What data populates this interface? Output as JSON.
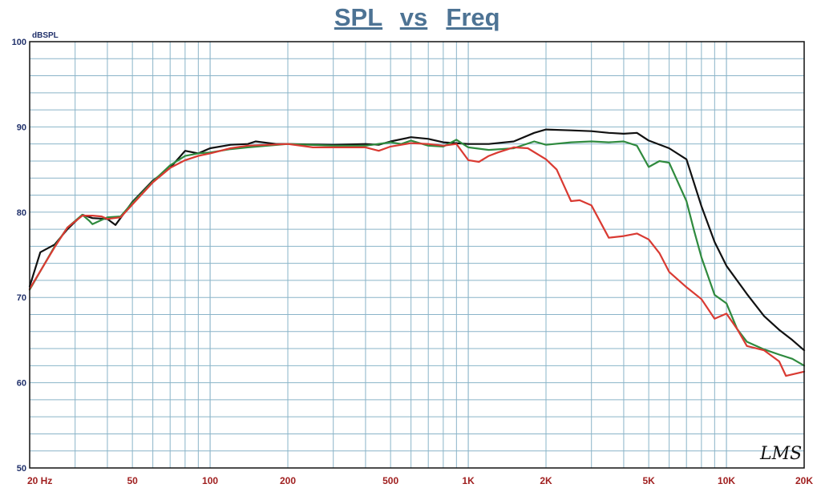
{
  "chart_data": {
    "type": "line",
    "title_words": [
      "SPL",
      "vs",
      "Freq"
    ],
    "ylabel": "dBSPL",
    "xscale": "log",
    "xlim": [
      20,
      20000
    ],
    "ylim": [
      50,
      100
    ],
    "grid": true,
    "yticks": [
      50,
      60,
      70,
      80,
      90,
      100
    ],
    "xtick_labels": [
      {
        "v": 20,
        "label": "20  Hz"
      },
      {
        "v": 50,
        "label": "50"
      },
      {
        "v": 100,
        "label": "100"
      },
      {
        "v": 200,
        "label": "200"
      },
      {
        "v": 500,
        "label": "500"
      },
      {
        "v": 1000,
        "label": "1K"
      },
      {
        "v": 2000,
        "label": "2K"
      },
      {
        "v": 5000,
        "label": "5K"
      },
      {
        "v": 10000,
        "label": "10K"
      },
      {
        "v": 20000,
        "label": "20K"
      }
    ],
    "logo": "LMS",
    "series": [
      {
        "color": "#111111",
        "points": [
          [
            20,
            71.3
          ],
          [
            22,
            75.3
          ],
          [
            25,
            76.2
          ],
          [
            28,
            78.0
          ],
          [
            32,
            79.7
          ],
          [
            35,
            79.3
          ],
          [
            40,
            79.2
          ],
          [
            43,
            78.5
          ],
          [
            50,
            81.2
          ],
          [
            60,
            83.7
          ],
          [
            70,
            85.2
          ],
          [
            80,
            87.2
          ],
          [
            90,
            86.9
          ],
          [
            100,
            87.5
          ],
          [
            120,
            87.9
          ],
          [
            140,
            88.0
          ],
          [
            150,
            88.3
          ],
          [
            180,
            88.0
          ],
          [
            200,
            88.0
          ],
          [
            300,
            87.9
          ],
          [
            400,
            88.0
          ],
          [
            450,
            87.9
          ],
          [
            500,
            88.3
          ],
          [
            600,
            88.8
          ],
          [
            700,
            88.6
          ],
          [
            800,
            88.2
          ],
          [
            1000,
            88.0
          ],
          [
            1200,
            88.0
          ],
          [
            1500,
            88.3
          ],
          [
            1800,
            89.3
          ],
          [
            2000,
            89.7
          ],
          [
            2500,
            89.6
          ],
          [
            3000,
            89.5
          ],
          [
            3500,
            89.3
          ],
          [
            4000,
            89.2
          ],
          [
            4500,
            89.3
          ],
          [
            5000,
            88.4
          ],
          [
            6000,
            87.5
          ],
          [
            7000,
            86.2
          ],
          [
            8000,
            80.7
          ],
          [
            9000,
            76.5
          ],
          [
            10000,
            73.7
          ],
          [
            12000,
            70.4
          ],
          [
            14000,
            67.8
          ],
          [
            16000,
            66.2
          ],
          [
            18000,
            65.0
          ],
          [
            20000,
            63.8
          ]
        ]
      },
      {
        "color": "#2f8a3e",
        "points": [
          [
            20,
            70.9
          ],
          [
            25,
            76.0
          ],
          [
            28,
            78.2
          ],
          [
            32,
            79.7
          ],
          [
            34,
            79.0
          ],
          [
            35,
            78.6
          ],
          [
            40,
            79.4
          ],
          [
            45,
            79.5
          ],
          [
            50,
            81.1
          ],
          [
            60,
            83.6
          ],
          [
            70,
            85.5
          ],
          [
            80,
            86.6
          ],
          [
            90,
            86.9
          ],
          [
            100,
            87.0
          ],
          [
            120,
            87.4
          ],
          [
            140,
            87.6
          ],
          [
            200,
            88.0
          ],
          [
            300,
            87.8
          ],
          [
            400,
            87.8
          ],
          [
            500,
            88.2
          ],
          [
            550,
            88.0
          ],
          [
            600,
            88.4
          ],
          [
            700,
            87.8
          ],
          [
            800,
            87.7
          ],
          [
            900,
            88.5
          ],
          [
            1000,
            87.6
          ],
          [
            1200,
            87.3
          ],
          [
            1500,
            87.5
          ],
          [
            1800,
            88.3
          ],
          [
            2000,
            87.9
          ],
          [
            2500,
            88.2
          ],
          [
            3000,
            88.3
          ],
          [
            3500,
            88.2
          ],
          [
            4000,
            88.3
          ],
          [
            4500,
            87.8
          ],
          [
            5000,
            85.3
          ],
          [
            5500,
            86.0
          ],
          [
            6000,
            85.8
          ],
          [
            7000,
            81.3
          ],
          [
            7500,
            77.8
          ],
          [
            8000,
            74.7
          ],
          [
            9000,
            70.3
          ],
          [
            10000,
            69.3
          ],
          [
            11000,
            66.3
          ],
          [
            12000,
            64.8
          ],
          [
            14000,
            63.9
          ],
          [
            16000,
            63.3
          ],
          [
            18000,
            62.8
          ],
          [
            20000,
            62.0
          ]
        ]
      },
      {
        "color": "#d93a32",
        "points": [
          [
            20,
            71.0
          ],
          [
            25,
            75.9
          ],
          [
            28,
            78.2
          ],
          [
            32,
            79.6
          ],
          [
            35,
            79.6
          ],
          [
            38,
            79.5
          ],
          [
            40,
            79.2
          ],
          [
            45,
            79.4
          ],
          [
            50,
            80.9
          ],
          [
            60,
            83.5
          ],
          [
            70,
            85.2
          ],
          [
            80,
            86.1
          ],
          [
            90,
            86.6
          ],
          [
            100,
            86.9
          ],
          [
            120,
            87.5
          ],
          [
            140,
            87.8
          ],
          [
            200,
            88.0
          ],
          [
            250,
            87.6
          ],
          [
            300,
            87.6
          ],
          [
            400,
            87.6
          ],
          [
            450,
            87.2
          ],
          [
            500,
            87.7
          ],
          [
            600,
            88.1
          ],
          [
            700,
            88.0
          ],
          [
            800,
            87.8
          ],
          [
            900,
            88.0
          ],
          [
            1000,
            86.1
          ],
          [
            1100,
            85.9
          ],
          [
            1200,
            86.6
          ],
          [
            1300,
            87.0
          ],
          [
            1500,
            87.6
          ],
          [
            1700,
            87.5
          ],
          [
            2000,
            86.2
          ],
          [
            2200,
            85.0
          ],
          [
            2500,
            81.3
          ],
          [
            2700,
            81.4
          ],
          [
            3000,
            80.8
          ],
          [
            3500,
            77.0
          ],
          [
            4000,
            77.2
          ],
          [
            4500,
            77.5
          ],
          [
            5000,
            76.8
          ],
          [
            5500,
            75.2
          ],
          [
            6000,
            73.0
          ],
          [
            7000,
            71.2
          ],
          [
            8000,
            69.8
          ],
          [
            9000,
            67.5
          ],
          [
            10000,
            68.1
          ],
          [
            11000,
            66.3
          ],
          [
            12000,
            64.3
          ],
          [
            14000,
            63.8
          ],
          [
            16000,
            62.5
          ],
          [
            17000,
            60.8
          ],
          [
            20000,
            61.3
          ]
        ]
      }
    ]
  }
}
